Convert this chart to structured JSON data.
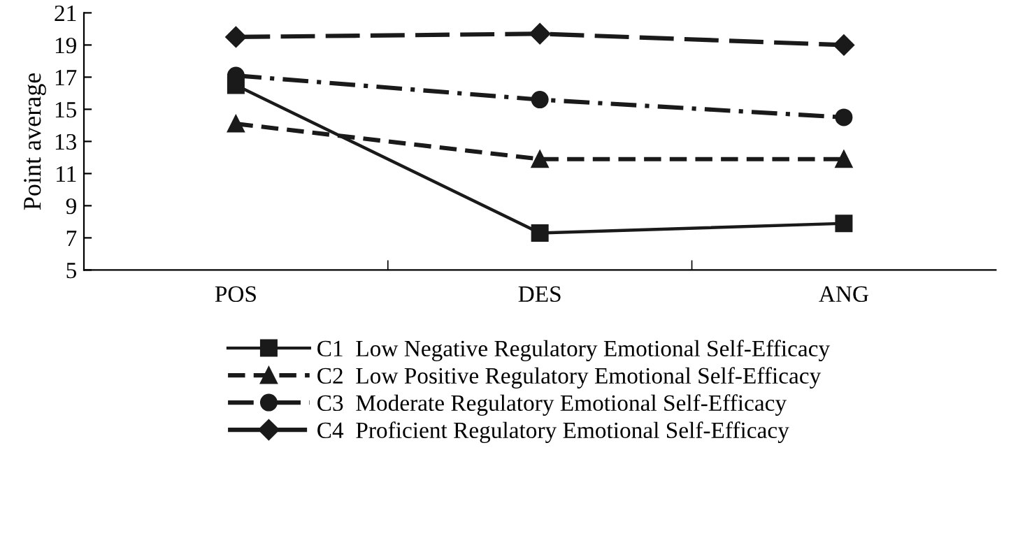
{
  "chart_data": {
    "type": "line",
    "ylabel": "Point average",
    "categories": [
      "POS",
      "DES",
      "ANG"
    ],
    "ylim": [
      5,
      21
    ],
    "yticks": [
      5,
      7,
      9,
      11,
      13,
      15,
      17,
      19,
      21
    ],
    "grid": false,
    "legend": "bottom",
    "series": [
      {
        "name": "C1  Low Negative Regulatory Emotional Self-Efficacy",
        "color": "#1a1a1a",
        "marker": "square",
        "line_style": "solid",
        "values": [
          16.5,
          7.3,
          7.9
        ]
      },
      {
        "name": "C2  Low Positive Regulatory Emotional Self-Efficacy",
        "color": "#1a1a1a",
        "marker": "triangle",
        "line_style": "dashed",
        "values": [
          14.1,
          11.9,
          11.9
        ]
      },
      {
        "name": "C3  Moderate Regulatory Emotional Self-Efficacy",
        "color": "#1a1a1a",
        "marker": "circle",
        "line_style": "dashdot",
        "values": [
          17.1,
          15.6,
          14.5
        ]
      },
      {
        "name": "C4  Proficient Regulatory Emotional Self-Efficacy",
        "color": "#1a1a1a",
        "marker": "diamond",
        "line_style": "longdash",
        "values": [
          19.5,
          19.7,
          19.0
        ]
      }
    ]
  }
}
